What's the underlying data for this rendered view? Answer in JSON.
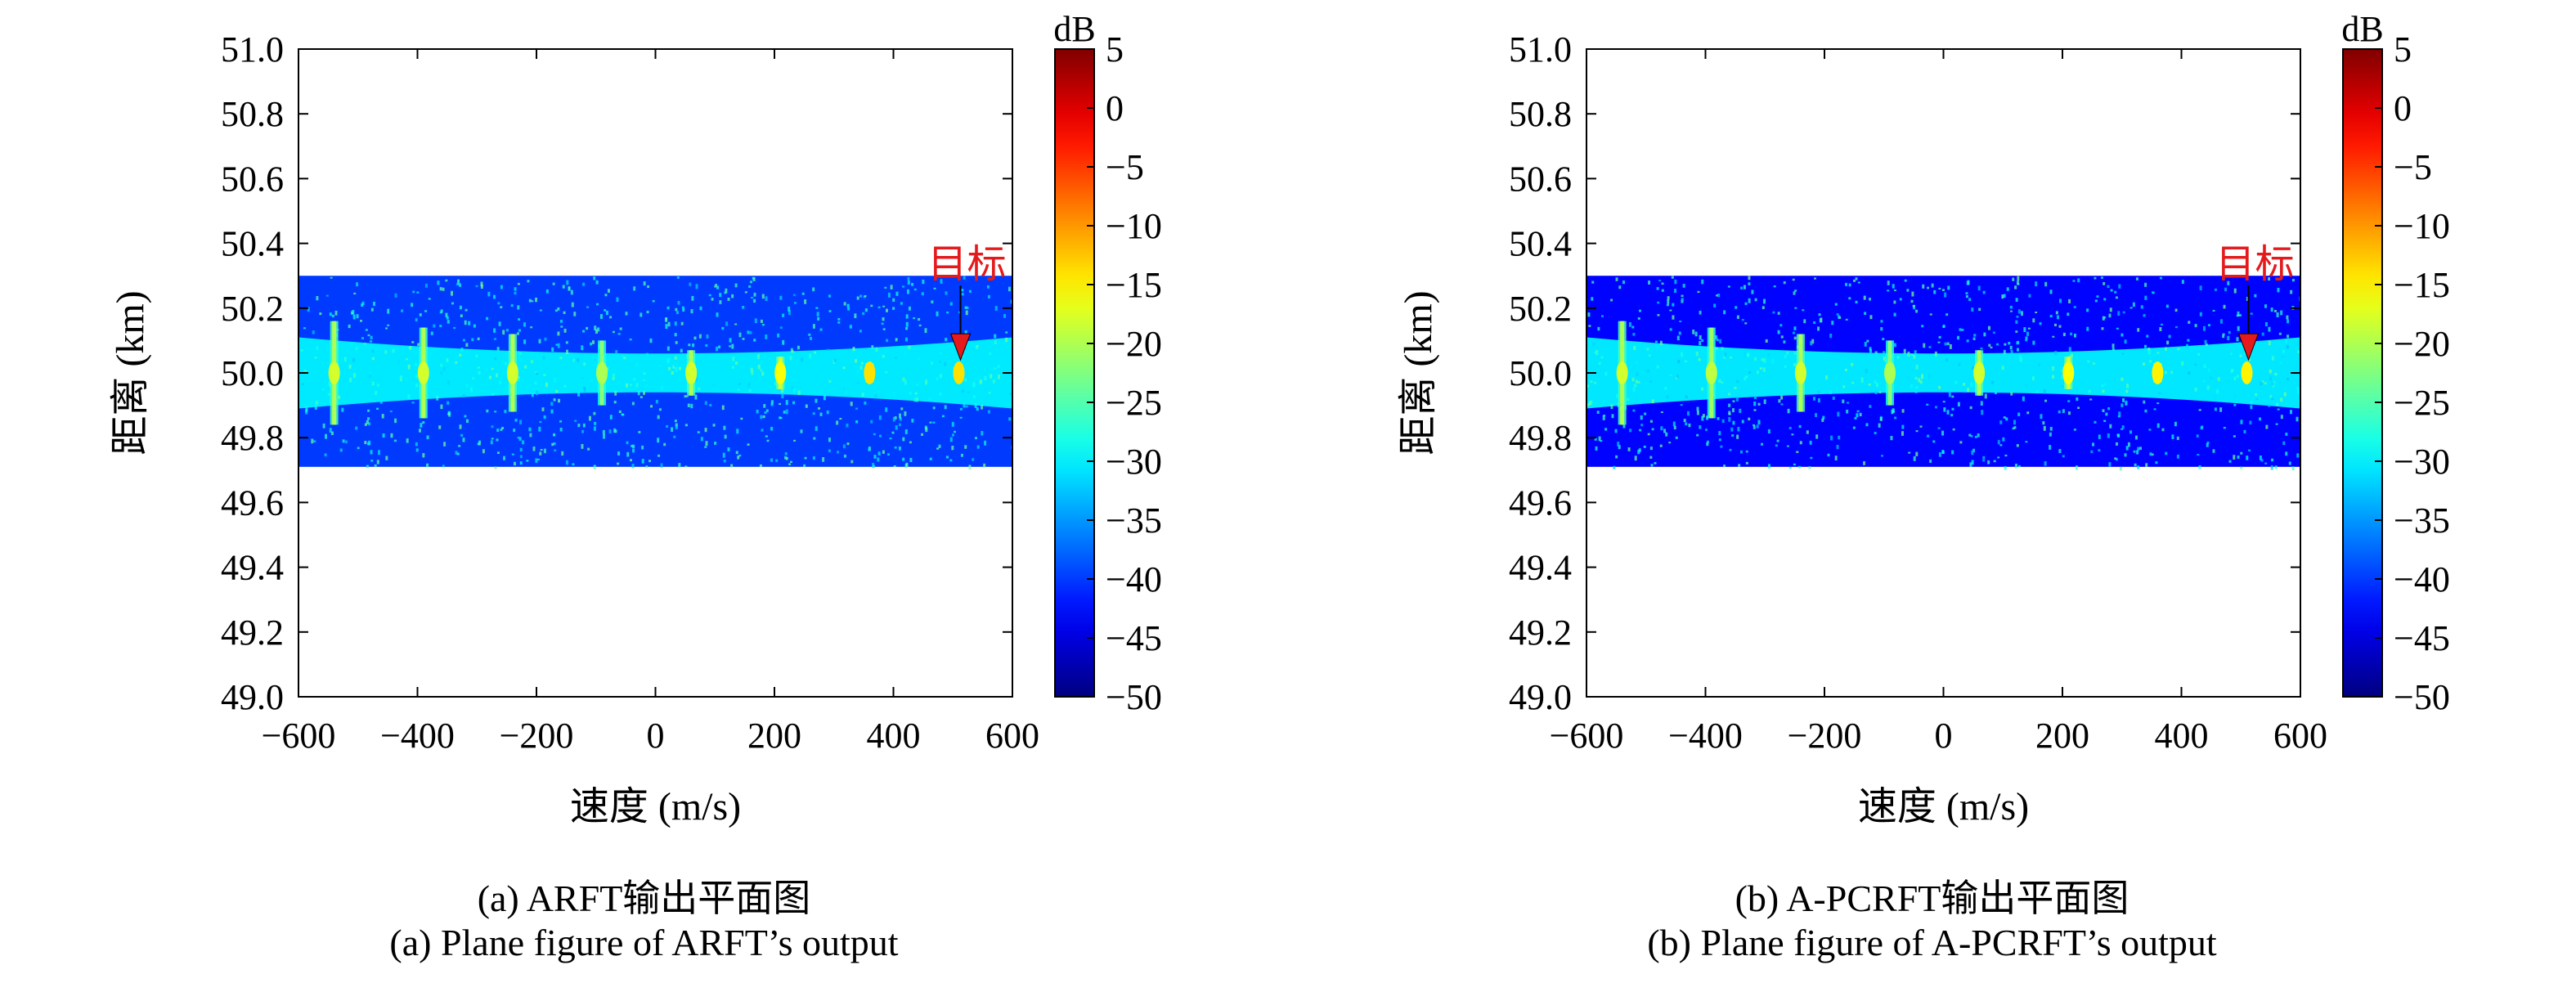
{
  "chart_data": [
    {
      "type": "heatmap",
      "id": "a",
      "xlabel": "速度 (m/s)",
      "ylabel": "距离 (km)",
      "xlim": [
        -600,
        600
      ],
      "ylim": [
        49.0,
        51.0
      ],
      "xticks": [
        -600,
        -400,
        -200,
        0,
        200,
        400,
        600
      ],
      "yticks": [
        49.0,
        49.2,
        49.4,
        49.6,
        49.8,
        50.0,
        50.2,
        50.4,
        50.6,
        50.8,
        51.0
      ],
      "colorbar": {
        "label": "dB",
        "range": [
          -50,
          5
        ],
        "ticks": [
          5,
          0,
          -5,
          -10,
          -15,
          -20,
          -25,
          -30,
          -35,
          -40,
          -45,
          -50
        ],
        "colormap": "jet"
      },
      "data_region": {
        "x": [
          -600,
          600
        ],
        "y": [
          49.71,
          50.3
        ],
        "background_db": -40
      },
      "band": {
        "center_km": 50.0,
        "half_width_edges_km": 0.11,
        "half_width_center_km": 0.06,
        "level_db": -30
      },
      "stripes": [
        {
          "velocity": -540,
          "level_db": -20,
          "half_height_km": 0.16
        },
        {
          "velocity": -390,
          "level_db": -20,
          "half_height_km": 0.14
        },
        {
          "velocity": -240,
          "level_db": -20,
          "half_height_km": 0.12
        },
        {
          "velocity": -90,
          "level_db": -22,
          "half_height_km": 0.1
        },
        {
          "velocity": 60,
          "level_db": -20,
          "half_height_km": 0.07
        },
        {
          "velocity": 210,
          "level_db": -18,
          "half_height_km": 0.05
        },
        {
          "velocity": 360,
          "level_db": -16,
          "half_height_km": 0.03
        },
        {
          "velocity": 510,
          "level_db": -16,
          "half_height_km": 0.025
        }
      ],
      "annotation": {
        "text": "目标",
        "target": [
          510,
          50.03
        ],
        "color": "#e41a1c"
      },
      "caption_cn": "(a) ARFT输出平面图",
      "caption_en": "(a) Plane figure of ARFT’s output"
    },
    {
      "type": "heatmap",
      "id": "b",
      "xlabel": "速度 (m/s)",
      "ylabel": "距离 (km)",
      "xlim": [
        -600,
        600
      ],
      "ylim": [
        49.0,
        51.0
      ],
      "xticks": [
        -600,
        -400,
        -200,
        0,
        200,
        400,
        600
      ],
      "yticks": [
        49.0,
        49.2,
        49.4,
        49.6,
        49.8,
        50.0,
        50.2,
        50.4,
        50.6,
        50.8,
        51.0
      ],
      "colorbar": {
        "label": "dB",
        "range": [
          -50,
          5
        ],
        "ticks": [
          5,
          0,
          -5,
          -10,
          -15,
          -20,
          -25,
          -30,
          -35,
          -40,
          -45,
          -50
        ],
        "colormap": "jet"
      },
      "data_region": {
        "x": [
          -600,
          600
        ],
        "y": [
          49.71,
          50.3
        ],
        "background_db": -43
      },
      "band": {
        "center_km": 50.0,
        "half_width_edges_km": 0.11,
        "half_width_center_km": 0.06,
        "level_db": -30
      },
      "stripes": [
        {
          "velocity": -540,
          "level_db": -20,
          "half_height_km": 0.16
        },
        {
          "velocity": -390,
          "level_db": -21,
          "half_height_km": 0.14
        },
        {
          "velocity": -240,
          "level_db": -20,
          "half_height_km": 0.12
        },
        {
          "velocity": -90,
          "level_db": -22,
          "half_height_km": 0.1
        },
        {
          "velocity": 60,
          "level_db": -20,
          "half_height_km": 0.07
        },
        {
          "velocity": 210,
          "level_db": -18,
          "half_height_km": 0.05
        },
        {
          "velocity": 360,
          "level_db": -17,
          "half_height_km": 0.03
        },
        {
          "velocity": 510,
          "level_db": -17,
          "half_height_km": 0.025
        }
      ],
      "annotation": {
        "text": "目标",
        "target": [
          510,
          50.03
        ],
        "color": "#e41a1c"
      },
      "caption_cn": "(b) A-PCRFT输出平面图",
      "caption_en": "(b) Plane figure of A-PCRFT’s output"
    }
  ]
}
